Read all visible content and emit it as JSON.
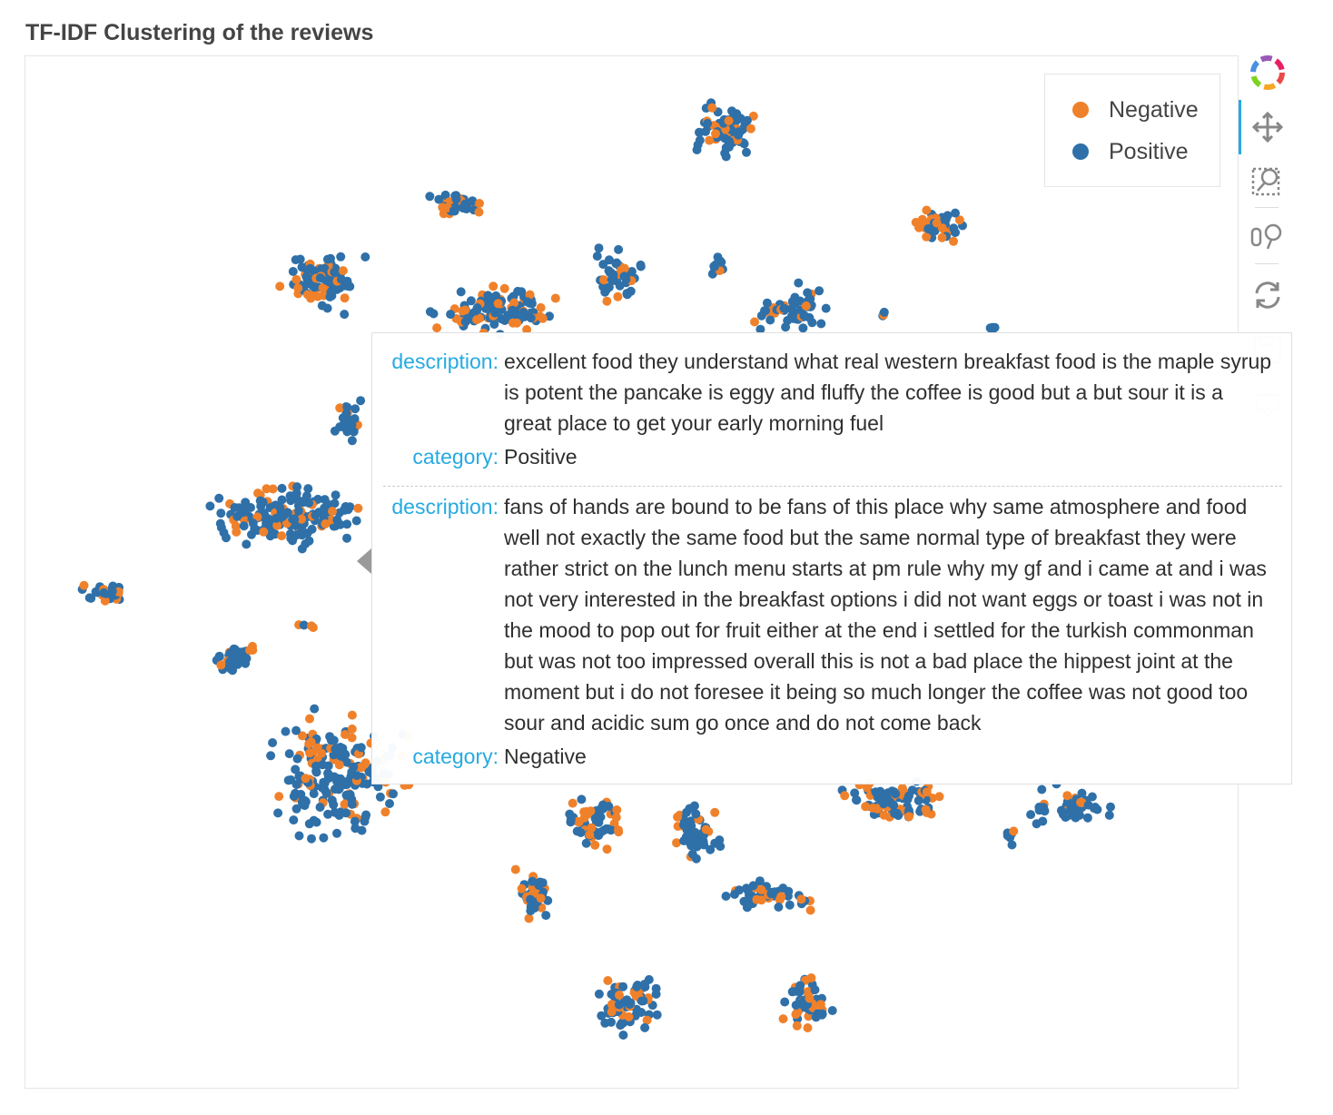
{
  "title": "TF-IDF Clustering of the reviews",
  "chart_data": {
    "type": "scatter",
    "title": "TF-IDF Clustering of the reviews",
    "xlabel": "",
    "ylabel": "",
    "grid": false,
    "legend_position": "top-right",
    "series": [
      {
        "name": "Negative",
        "color": "#f0812b"
      },
      {
        "name": "Positive",
        "color": "#2f70a8"
      }
    ],
    "note_points": "individual review embeddings; no axes printed",
    "clusters": [
      {
        "cx": 33,
        "cy": 82,
        "rx": 24,
        "ry": 32,
        "n": 110,
        "neg": 0.2
      },
      {
        "cx": 36,
        "cy": 78,
        "rx": 4,
        "ry": 4,
        "n": 10,
        "neg": 0.8
      },
      {
        "cx": 89,
        "cy": 52,
        "rx": 28,
        "ry": 30,
        "n": 90,
        "neg": 0.35
      },
      {
        "cx": 48,
        "cy": 73,
        "rx": 24,
        "ry": 28,
        "n": 45,
        "neg": 0.15
      },
      {
        "cx": 16,
        "cy": 62,
        "rx": 23,
        "ry": 13,
        "n": 20,
        "neg": 0.15
      },
      {
        "cx": 73,
        "cy": 50,
        "rx": 31,
        "ry": 12,
        "n": 35,
        "neg": 0.15
      },
      {
        "cx": 67,
        "cy": 0,
        "rx": 2,
        "ry": 2,
        "n": 1,
        "neg": 0
      },
      {
        "cx": 63,
        "cy": 61,
        "rx": 13,
        "ry": 13,
        "n": 30,
        "neg": 0.15
      },
      {
        "cx": 110,
        "cy": 26,
        "rx": 14,
        "ry": 17,
        "n": 30,
        "neg": 0.25
      },
      {
        "cx": 90,
        "cy": 20,
        "rx": 25,
        "ry": 22,
        "n": 30,
        "neg": 0.25
      },
      {
        "cx": 130,
        "cy": 14,
        "rx": 14,
        "ry": 13,
        "n": 20,
        "neg": 0.25
      },
      {
        "cx": 150,
        "cy": 30,
        "rx": 32,
        "ry": 30,
        "n": 25,
        "neg": 0.35
      }
    ],
    "categories": [
      "Negative",
      "Positive"
    ]
  },
  "legend": {
    "items": [
      {
        "label": "Negative",
        "color": "#f0812b"
      },
      {
        "label": "Positive",
        "color": "#2f70a8"
      }
    ]
  },
  "toolbar": {
    "items": [
      "bokeh-logo-icon",
      "pan-icon",
      "box-zoom-icon",
      "wheel-zoom-icon",
      "reset-icon",
      "save-icon",
      "hover-icon"
    ]
  },
  "tooltip": {
    "entries": [
      {
        "description_key": "description:",
        "description": "excellent food they understand what real western breakfast food is the maple syrup is potent the pancake is eggy and fluffy the coffee is good but a but sour it is a great place to get your early morning fuel",
        "category_key": "category:",
        "category": "Positive"
      },
      {
        "description_key": "description:",
        "description": "fans of hands are bound to be fans of this place why same atmosphere and food well not exactly the same food but the same normal type of breakfast they were rather strict on the lunch menu starts at pm rule why my gf and i came at and i was not very interested in the breakfast options i did not want eggs or toast i was not in the mood to pop out for fruit either at the end i settled for the turkish commonman but was not too impressed overall this is not a bad place the hippest joint at the moment but i do not foresee it being so much longer the coffee was not good too sour and acidic sum go once and do not come back",
        "category_key": "category:",
        "category": "Negative"
      }
    ]
  }
}
